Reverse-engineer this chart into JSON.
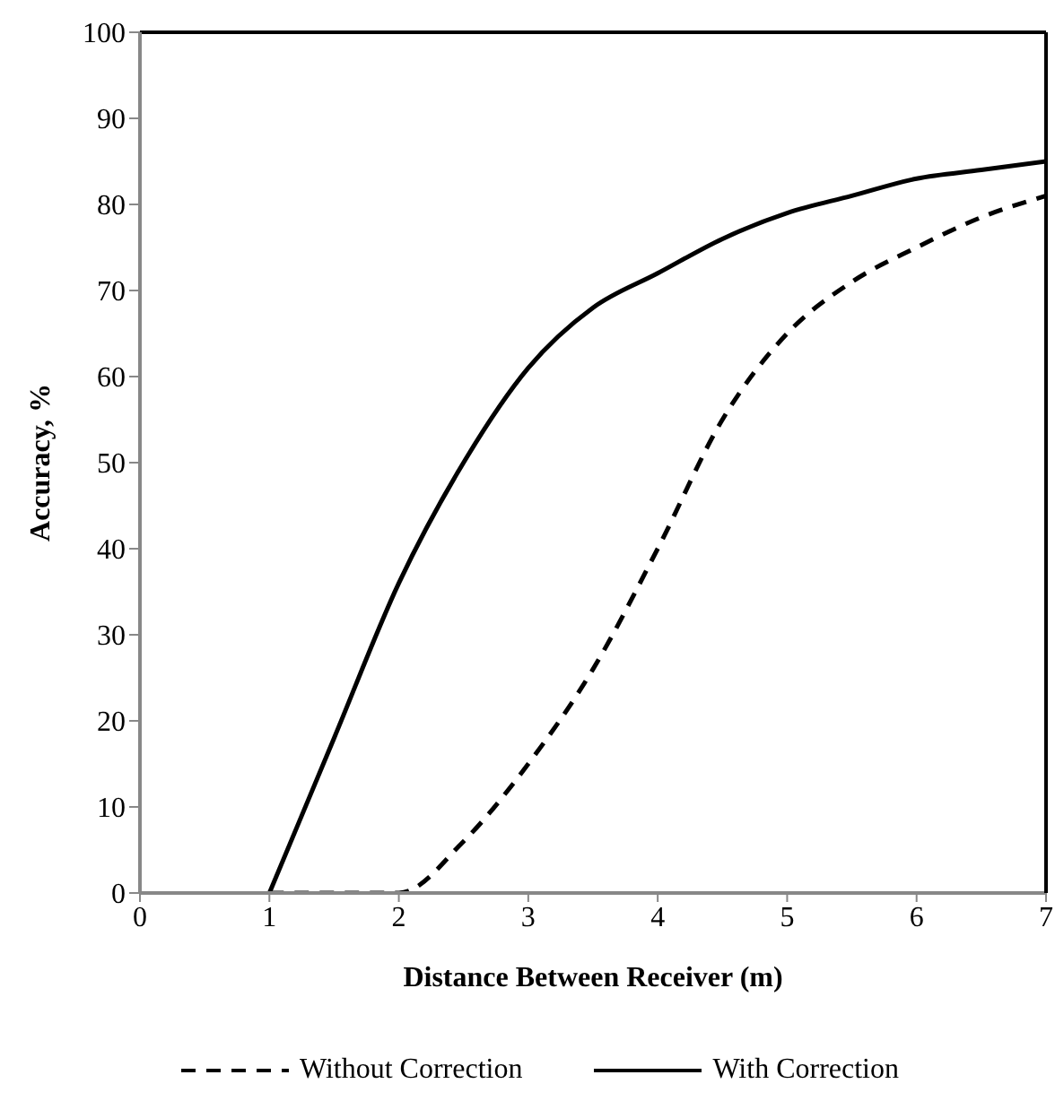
{
  "chart_data": {
    "type": "line",
    "xlabel": "Distance Between Receiver (m)",
    "ylabel": "Accuracy, %",
    "x": [
      1,
      1.5,
      2,
      2.5,
      3,
      3.5,
      4,
      4.5,
      5,
      5.5,
      6,
      6.5,
      7
    ],
    "series": [
      {
        "name": "Without Correction",
        "color": "#000000",
        "line_style": "dashed",
        "values": [
          0,
          0,
          0,
          6,
          15,
          26,
          40,
          55,
          65,
          71,
          75,
          78.5,
          81
        ]
      },
      {
        "name": "With Correction",
        "color": "#000000",
        "line_style": "solid",
        "values": [
          0,
          18,
          36,
          50,
          61,
          68,
          72,
          76,
          79,
          81,
          83,
          84,
          85
        ]
      }
    ],
    "xlim": [
      0,
      7
    ],
    "xticks": [
      0,
      1,
      2,
      3,
      4,
      5,
      6,
      7
    ],
    "ylim": [
      0,
      100
    ],
    "yticks": [
      0,
      10,
      20,
      30,
      40,
      50,
      60,
      70,
      80,
      90,
      100
    ],
    "grid": false,
    "legend": "bottom",
    "marker": "none"
  }
}
